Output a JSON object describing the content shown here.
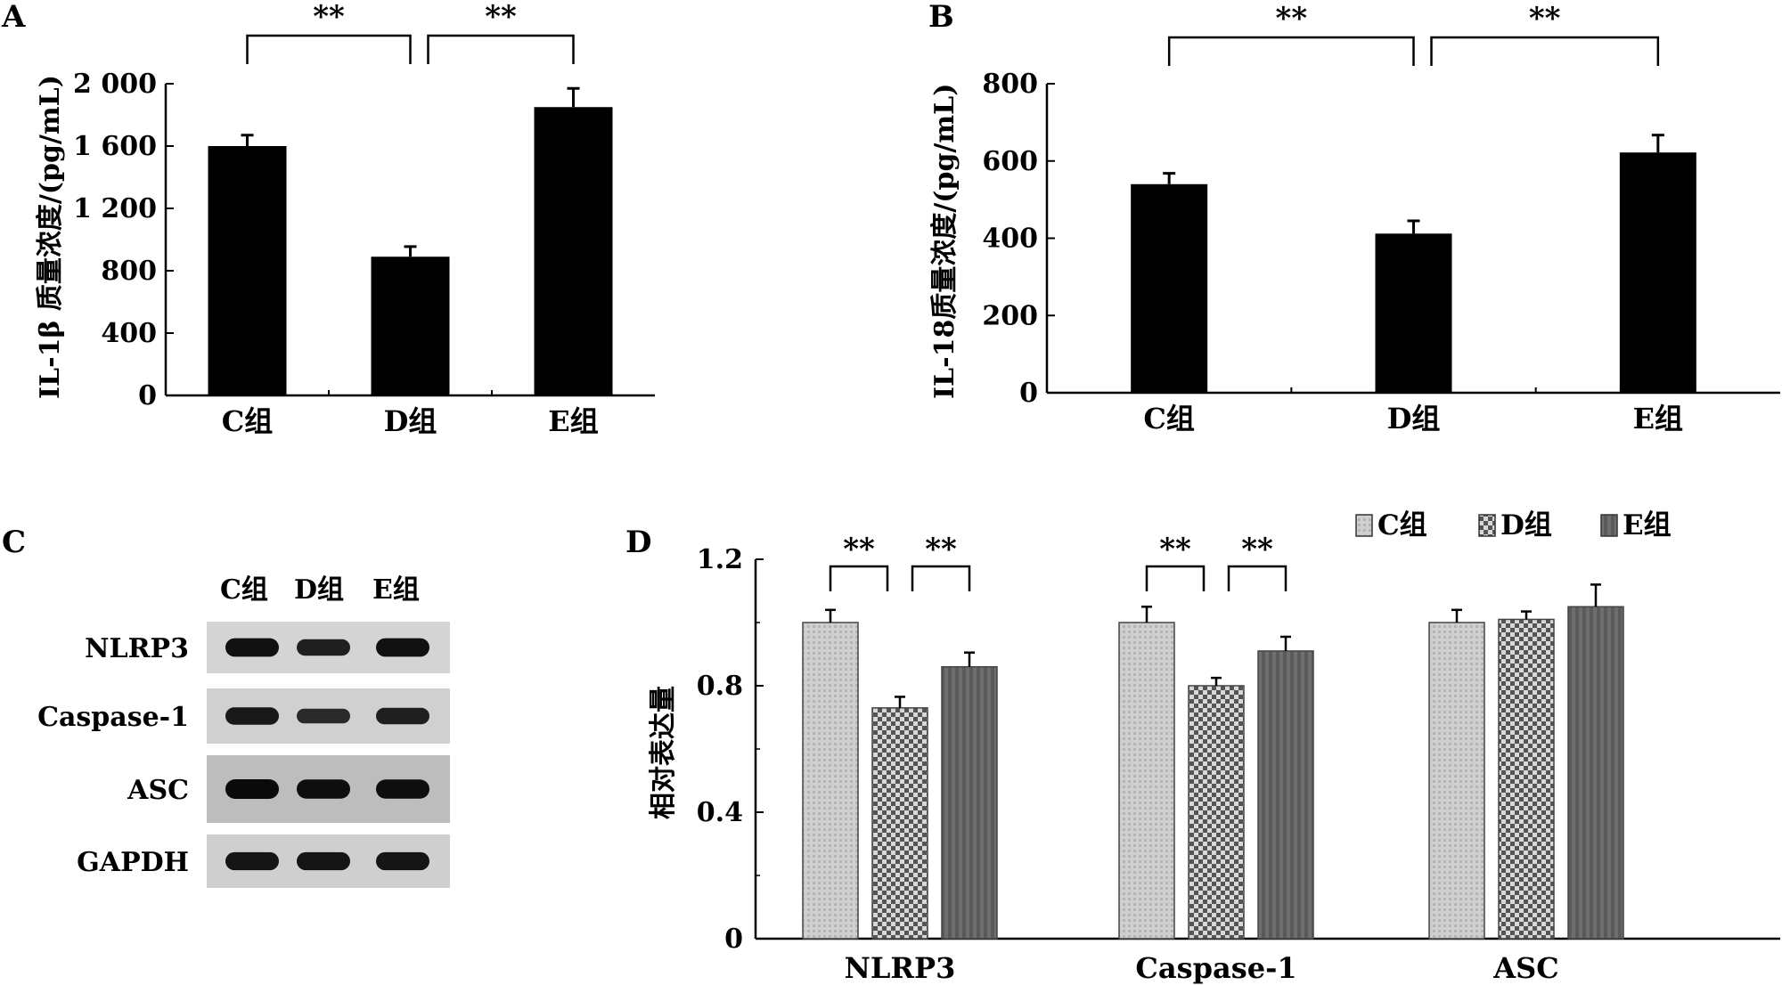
{
  "chart_data": [
    {
      "panel": "A",
      "type": "bar",
      "ylabel": "IL-1β 质量浓度/(pg/mL)",
      "categories": [
        "C组",
        "D组",
        "E组"
      ],
      "values": [
        1600,
        890,
        1850
      ],
      "errors": [
        70,
        65,
        120
      ],
      "ylim": [
        0,
        2000
      ],
      "yticks": [
        "0",
        "400",
        "800",
        "1 200",
        "1 600",
        "2 000"
      ],
      "significance": [
        {
          "from": 0,
          "to": 1,
          "label": "**"
        },
        {
          "from": 1,
          "to": 2,
          "label": "**"
        }
      ],
      "bar_color": "#000000"
    },
    {
      "panel": "B",
      "type": "bar",
      "ylabel": "IL-18质量浓度/(pg/mL)",
      "categories": [
        "C组",
        "D组",
        "E组"
      ],
      "values": [
        540,
        412,
        622
      ],
      "errors": [
        28,
        33,
        45
      ],
      "ylim": [
        0,
        800
      ],
      "yticks": [
        "0",
        "200",
        "400",
        "600",
        "800"
      ],
      "significance": [
        {
          "from": 0,
          "to": 1,
          "label": "**"
        },
        {
          "from": 1,
          "to": 2,
          "label": "**"
        }
      ],
      "bar_color": "#000000"
    },
    {
      "panel": "D",
      "type": "bar",
      "ylabel": "相对表达量",
      "categories": [
        "NLRP3",
        "Caspase-1",
        "ASC"
      ],
      "series": [
        {
          "name": "C组",
          "values": [
            1.0,
            1.0,
            1.0
          ],
          "errors": [
            0.04,
            0.05,
            0.04
          ],
          "color": "#c8c8c8",
          "pattern": "light"
        },
        {
          "name": "D组",
          "values": [
            0.73,
            0.8,
            1.01
          ],
          "errors": [
            0.035,
            0.025,
            0.025
          ],
          "color": "#8a8a8a",
          "pattern": "checker"
        },
        {
          "name": "E组",
          "values": [
            0.86,
            0.91,
            1.05
          ],
          "errors": [
            0.045,
            0.045,
            0.07
          ],
          "color": "#666666",
          "pattern": "dark"
        }
      ],
      "ylim": [
        0,
        1.2
      ],
      "yticks": [
        "0",
        "0.4",
        "0.8",
        "1.2"
      ],
      "significance": [
        {
          "group": 0,
          "from": 0,
          "to": 1,
          "label": "**"
        },
        {
          "group": 0,
          "from": 1,
          "to": 2,
          "label": "**"
        },
        {
          "group": 1,
          "from": 0,
          "to": 1,
          "label": "**"
        },
        {
          "group": 1,
          "from": 1,
          "to": 2,
          "label": "**"
        }
      ],
      "legend_position": "top-right"
    }
  ],
  "panel_letters": {
    "a": "A",
    "b": "B",
    "c": "C",
    "d": "D"
  },
  "blot": {
    "columns": [
      "C组",
      "D组",
      "E组"
    ],
    "rows": [
      {
        "label": "NLRP3",
        "intensity": [
          0.9,
          0.7,
          0.9
        ]
      },
      {
        "label": "Caspase-1",
        "intensity": [
          0.8,
          0.55,
          0.7
        ]
      },
      {
        "label": "ASC",
        "intensity": [
          1.0,
          0.95,
          0.95
        ]
      },
      {
        "label": "GAPDH",
        "intensity": [
          0.85,
          0.85,
          0.85
        ]
      }
    ]
  }
}
